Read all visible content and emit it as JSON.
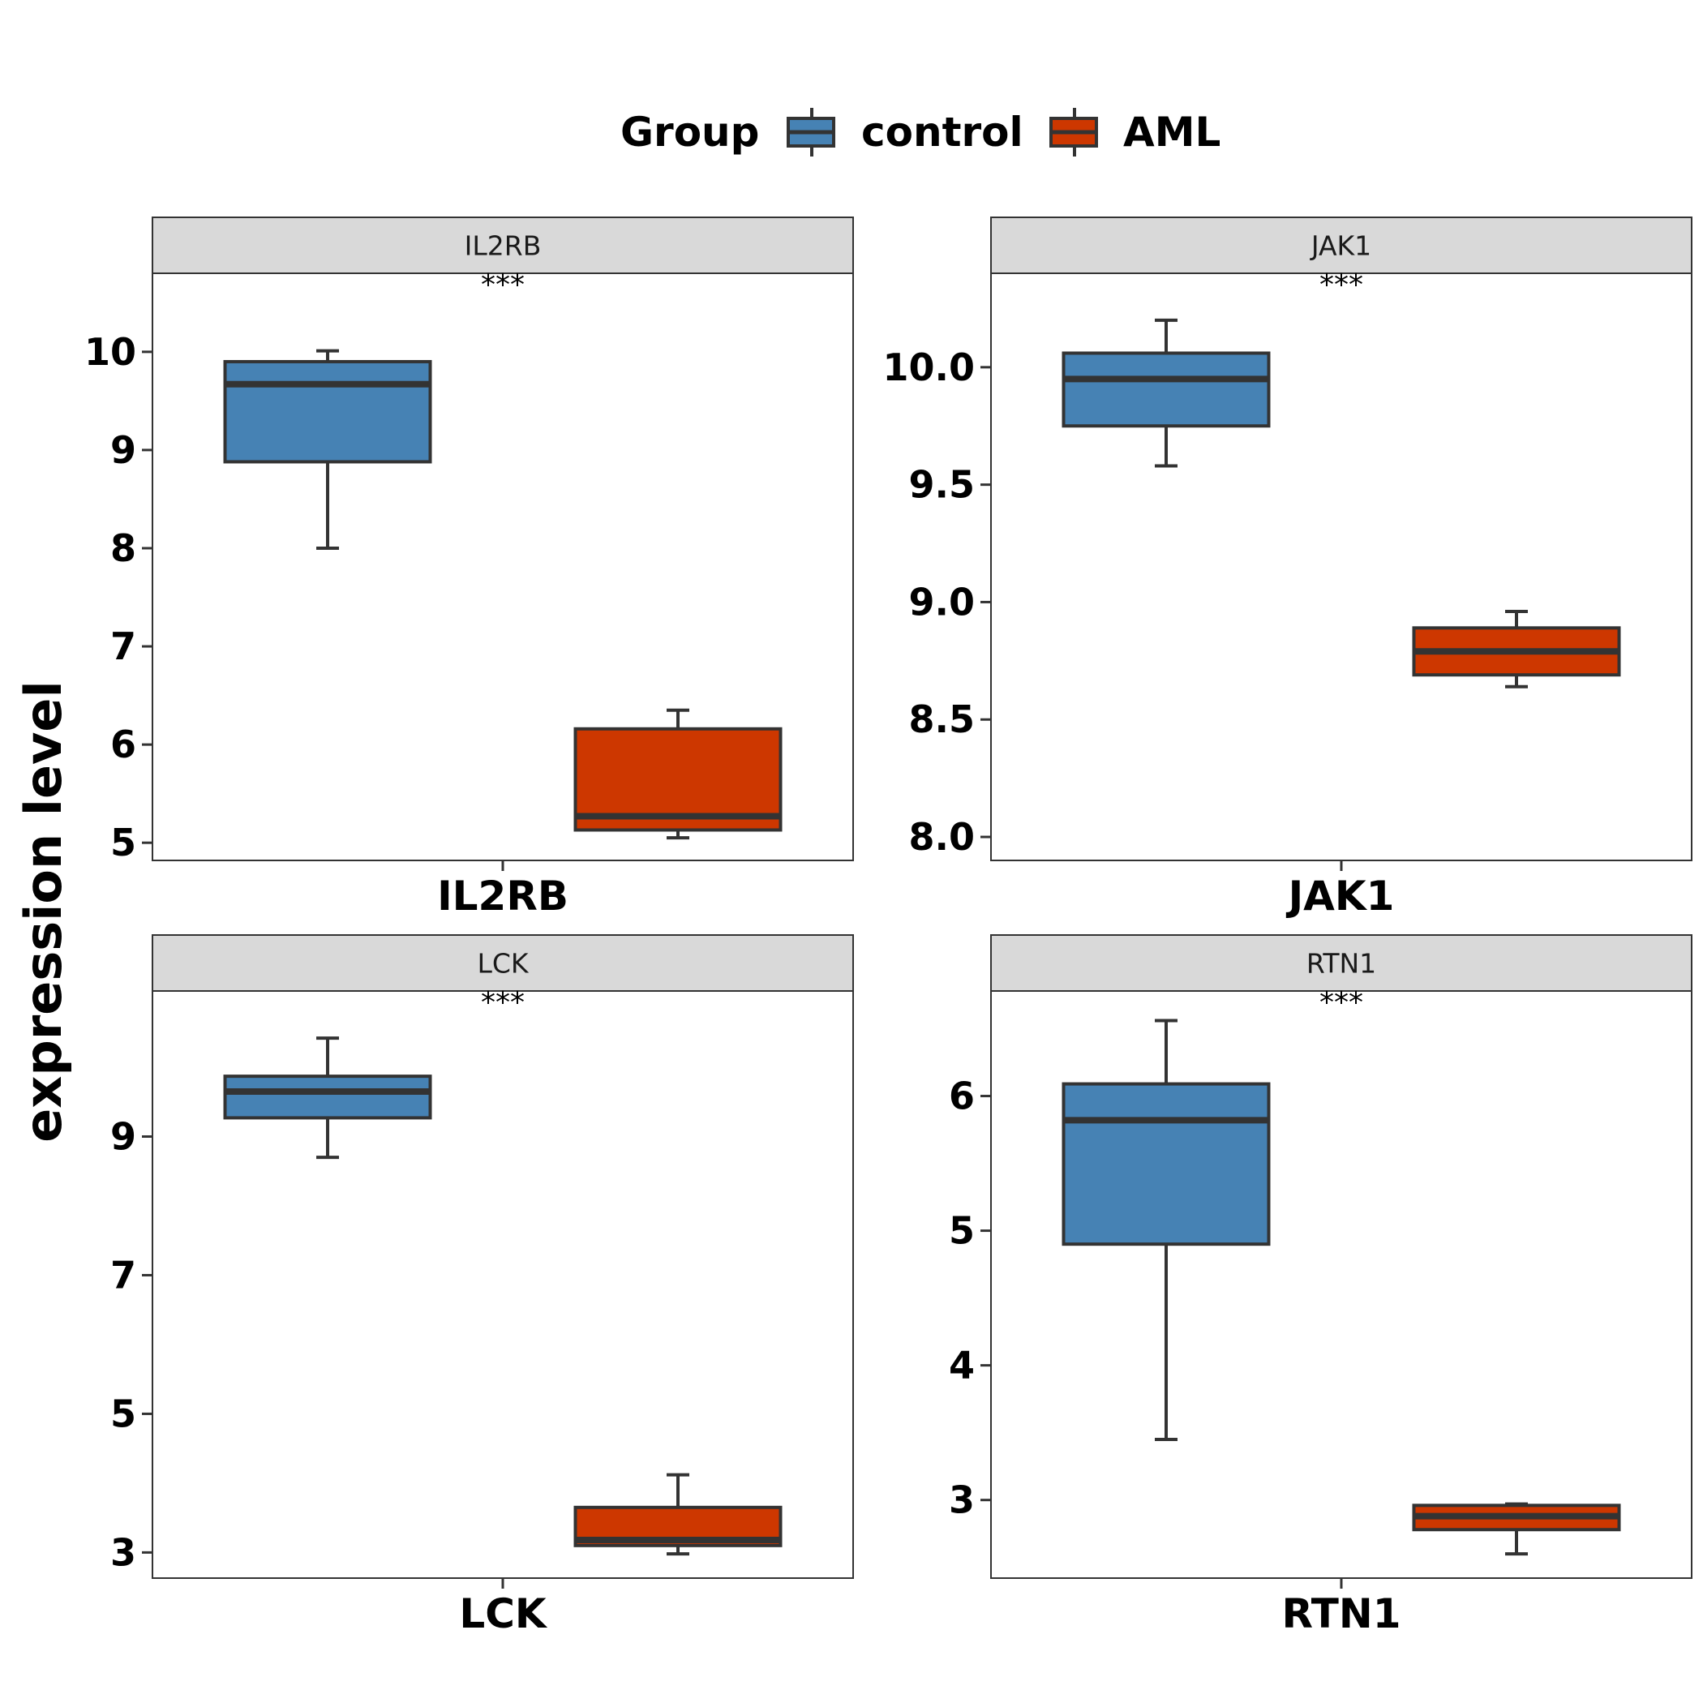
{
  "legend": {
    "title": "Group",
    "items": [
      {
        "label": "control",
        "color": "#4682B4"
      },
      {
        "label": "AML",
        "color": "#CD3700"
      }
    ]
  },
  "y_axis_title": "expression level",
  "chart_data": [
    {
      "type": "box",
      "facet": "IL2RB",
      "x_label": "IL2RB",
      "significance": "***",
      "ylim": [
        4.82,
        10.8
      ],
      "y_ticks": [
        "5",
        "6",
        "7",
        "8",
        "9",
        "10"
      ],
      "series": [
        {
          "name": "control",
          "color": "#4682B4",
          "min": 8.0,
          "q1": 8.88,
          "median": 9.67,
          "q3": 9.9,
          "max": 10.01
        },
        {
          "name": "AML",
          "color": "#CD3700",
          "min": 5.05,
          "q1": 5.13,
          "median": 5.27,
          "q3": 6.16,
          "max": 6.35
        }
      ]
    },
    {
      "type": "box",
      "facet": "JAK1",
      "x_label": "JAK1",
      "significance": "***",
      "ylim": [
        7.9,
        10.4
      ],
      "y_ticks": [
        "8.0",
        "8.5",
        "9.0",
        "9.5",
        "10.0"
      ],
      "series": [
        {
          "name": "control",
          "color": "#4682B4",
          "min": 9.58,
          "q1": 9.75,
          "median": 9.95,
          "q3": 10.06,
          "max": 10.2
        },
        {
          "name": "AML",
          "color": "#CD3700",
          "min": 8.64,
          "q1": 8.69,
          "median": 8.79,
          "q3": 8.89,
          "max": 8.96
        }
      ]
    },
    {
      "type": "box",
      "facet": "LCK",
      "x_label": "LCK",
      "significance": "***",
      "ylim": [
        2.63,
        11.1
      ],
      "y_ticks": [
        "3",
        "5",
        "7",
        "9"
      ],
      "series": [
        {
          "name": "control",
          "color": "#4682B4",
          "min": 8.7,
          "q1": 9.27,
          "median": 9.65,
          "q3": 9.87,
          "max": 10.42
        },
        {
          "name": "AML",
          "color": "#CD3700",
          "min": 2.98,
          "q1": 3.1,
          "median": 3.18,
          "q3": 3.65,
          "max": 4.12
        }
      ]
    },
    {
      "type": "box",
      "facet": "RTN1",
      "x_label": "RTN1",
      "significance": "***",
      "ylim": [
        2.42,
        6.78
      ],
      "y_ticks": [
        "3",
        "4",
        "5",
        "6"
      ],
      "series": [
        {
          "name": "control",
          "color": "#4682B4",
          "min": 3.45,
          "q1": 4.9,
          "median": 5.82,
          "q3": 6.09,
          "max": 6.56
        },
        {
          "name": "AML",
          "color": "#CD3700",
          "min": 2.6,
          "q1": 2.78,
          "median": 2.88,
          "q3": 2.96,
          "max": 2.97
        }
      ]
    }
  ]
}
